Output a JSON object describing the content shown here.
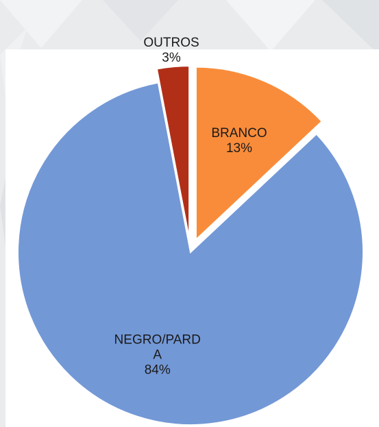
{
  "chart_data": {
    "type": "pie",
    "title": "",
    "slices": [
      {
        "label": "BRANCO",
        "label_lines": [
          "BRANCO"
        ],
        "value": 13,
        "value_label": "13%",
        "color": "#f98c3a",
        "exploded": true
      },
      {
        "label": "NEGRO/PARDA",
        "label_lines": [
          "NEGRO/PARD",
          "A"
        ],
        "value": 84,
        "value_label": "84%",
        "color": "#7398d6",
        "exploded": false
      },
      {
        "label": "OUTROS",
        "label_lines": [
          "OUTROS"
        ],
        "value": 3,
        "value_label": "3%",
        "color": "#b22f17",
        "exploded": true
      }
    ]
  },
  "background_color": "#e9ebed"
}
